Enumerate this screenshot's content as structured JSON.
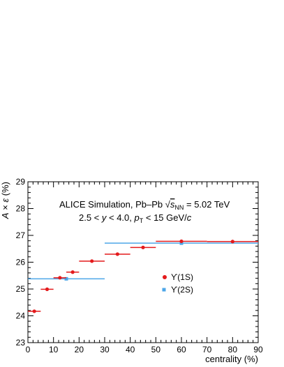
{
  "chart_data": {
    "type": "scatter",
    "xlabel": "centrality (%)",
    "ylabel": "A × ε (%)",
    "xlim": [
      0,
      90
    ],
    "ylim": [
      23,
      29
    ],
    "xticks": [
      "0",
      "10",
      "20",
      "30",
      "40",
      "50",
      "60",
      "70",
      "80",
      "90"
    ],
    "yticks": [
      "23",
      "24",
      "25",
      "26",
      "27",
      "28",
      "29"
    ],
    "annotation_line1_prefix": "ALICE Simulation, Pb–Pb ",
    "annotation_line1_suffix": " = 5.02 TeV",
    "annotation_sqrt_s": "s",
    "annotation_sqrt_sub": "NN",
    "annotation_line2": "2.5 < y < 4.0, pT < 15 GeV/c",
    "grid": false,
    "legend_position": "center-right",
    "series": [
      {
        "name": "ϒ(1S)",
        "color": "#e41a1c",
        "marker": "circle",
        "points": [
          {
            "x": 2.5,
            "xlo": 0,
            "xhi": 5,
            "y": 24.17,
            "yerr": 0.05
          },
          {
            "x": 7.5,
            "xlo": 5,
            "xhi": 10,
            "y": 24.99,
            "yerr": 0.05
          },
          {
            "x": 12.5,
            "xlo": 10,
            "xhi": 15,
            "y": 25.42,
            "yerr": 0.05
          },
          {
            "x": 17.5,
            "xlo": 15,
            "xhi": 20,
            "y": 25.63,
            "yerr": 0.05
          },
          {
            "x": 25,
            "xlo": 20,
            "xhi": 30,
            "y": 26.04,
            "yerr": 0.04
          },
          {
            "x": 35,
            "xlo": 30,
            "xhi": 40,
            "y": 26.3,
            "yerr": 0.04
          },
          {
            "x": 45,
            "xlo": 40,
            "xhi": 50,
            "y": 26.55,
            "yerr": 0.04
          },
          {
            "x": 60,
            "xlo": 50,
            "xhi": 70,
            "y": 26.78,
            "yerr": 0.03
          },
          {
            "x": 80,
            "xlo": 70,
            "xhi": 90,
            "y": 26.77,
            "yerr": 0.03
          }
        ]
      },
      {
        "name": "ϒ(2S)",
        "color": "#4da6e8",
        "marker": "square",
        "points": [
          {
            "x": 15,
            "xlo": 0,
            "xhi": 30,
            "y": 25.38,
            "yerr": 0.04
          },
          {
            "x": 60,
            "xlo": 30,
            "xhi": 90,
            "y": 26.71,
            "yerr": 0.03
          }
        ]
      }
    ]
  }
}
